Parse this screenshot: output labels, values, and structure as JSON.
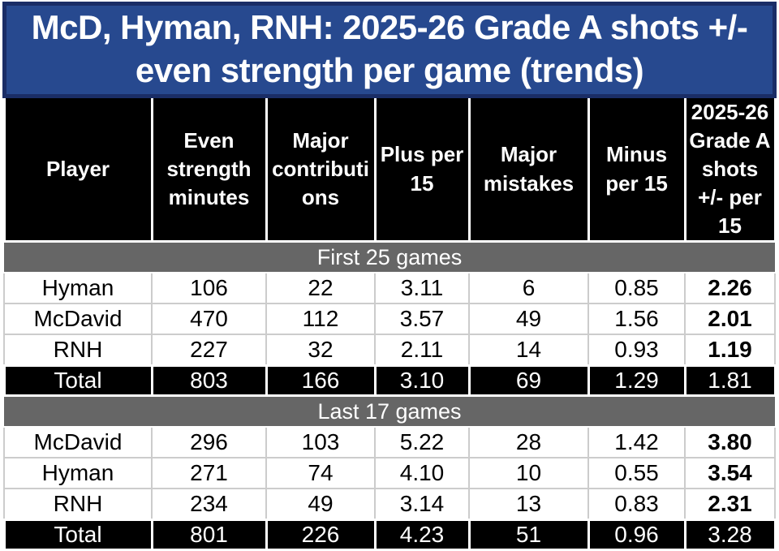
{
  "title": "McD, Hyman, RNH: 2025-26 Grade A shots +/- even strength per game (trends)",
  "colors": {
    "title_background": "#27498f",
    "title_border": "#1a2d66",
    "title_text": "#ffffff",
    "header_background": "#000000",
    "header_text": "#ffffff",
    "section_band_background": "#666666",
    "section_band_text": "#ffffff",
    "body_row_background": "#ffffff",
    "body_row_text": "#000000",
    "total_row_background": "#000000",
    "total_row_text": "#ffffff",
    "grid_line": "#cccccc"
  },
  "chart_data": {
    "type": "table",
    "title": "McD, Hyman, RNH: 2025-26 Grade A shots +/- even strength per game (trends)",
    "columns": [
      "Player",
      "Even strength minutes",
      "Major contributions",
      "Plus per 15",
      "Major mistakes",
      "Minus per 15",
      "2025-26 Grade A shots +/- per 15"
    ],
    "sections": [
      {
        "label": "First 25 games",
        "rows": [
          {
            "is_total": false,
            "cells": [
              "Hyman",
              "106",
              "22",
              "3.11",
              "6",
              "0.85",
              "2.26"
            ]
          },
          {
            "is_total": false,
            "cells": [
              "McDavid",
              "470",
              "112",
              "3.57",
              "49",
              "1.56",
              "2.01"
            ]
          },
          {
            "is_total": false,
            "cells": [
              "RNH",
              "227",
              "32",
              "2.11",
              "14",
              "0.93",
              "1.19"
            ]
          },
          {
            "is_total": true,
            "cells": [
              "Total",
              "803",
              "166",
              "3.10",
              "69",
              "1.29",
              "1.81"
            ]
          }
        ]
      },
      {
        "label": "Last 17 games",
        "rows": [
          {
            "is_total": false,
            "cells": [
              "McDavid",
              "296",
              "103",
              "5.22",
              "28",
              "1.42",
              "3.80"
            ]
          },
          {
            "is_total": false,
            "cells": [
              "Hyman",
              "271",
              "74",
              "4.10",
              "10",
              "0.55",
              "3.54"
            ]
          },
          {
            "is_total": false,
            "cells": [
              "RNH",
              "234",
              "49",
              "3.14",
              "13",
              "0.83",
              "2.31"
            ]
          },
          {
            "is_total": true,
            "cells": [
              "Total",
              "801",
              "226",
              "4.23",
              "51",
              "0.96",
              "3.28"
            ]
          }
        ]
      }
    ]
  }
}
